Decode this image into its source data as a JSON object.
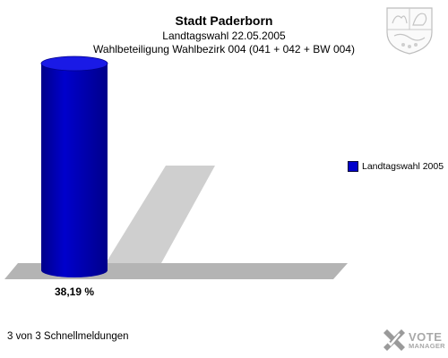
{
  "chart_data": {
    "type": "bar",
    "title": "Stadt Paderborn",
    "subtitle": "Landtagswahl 22.05.2005",
    "subtitle2": "Wahlbeteiligung Wahlbezirk 004 (041 + 042 + BW 004)",
    "categories": [
      "Landtagswahl 2005"
    ],
    "series": [
      {
        "name": "Landtagswahl 2005",
        "values": [
          38.19
        ]
      }
    ],
    "value_labels": [
      "38,19 %"
    ],
    "ylim": [
      0,
      38.19
    ],
    "legend_position": "right",
    "colors": {
      "bar": "#0000cc",
      "bar_dark": "#00008a",
      "floor": "#b4b4b4",
      "wall": "#cfcfcf"
    }
  },
  "footer": {
    "text": "3 von 3 Schnellmeldungen"
  },
  "logo": {
    "word1": "VOTE",
    "word2": "MANAGER",
    "icon": "vote-manager-logo-icon"
  },
  "crest": {
    "icon": "coat-of-arms-icon"
  }
}
